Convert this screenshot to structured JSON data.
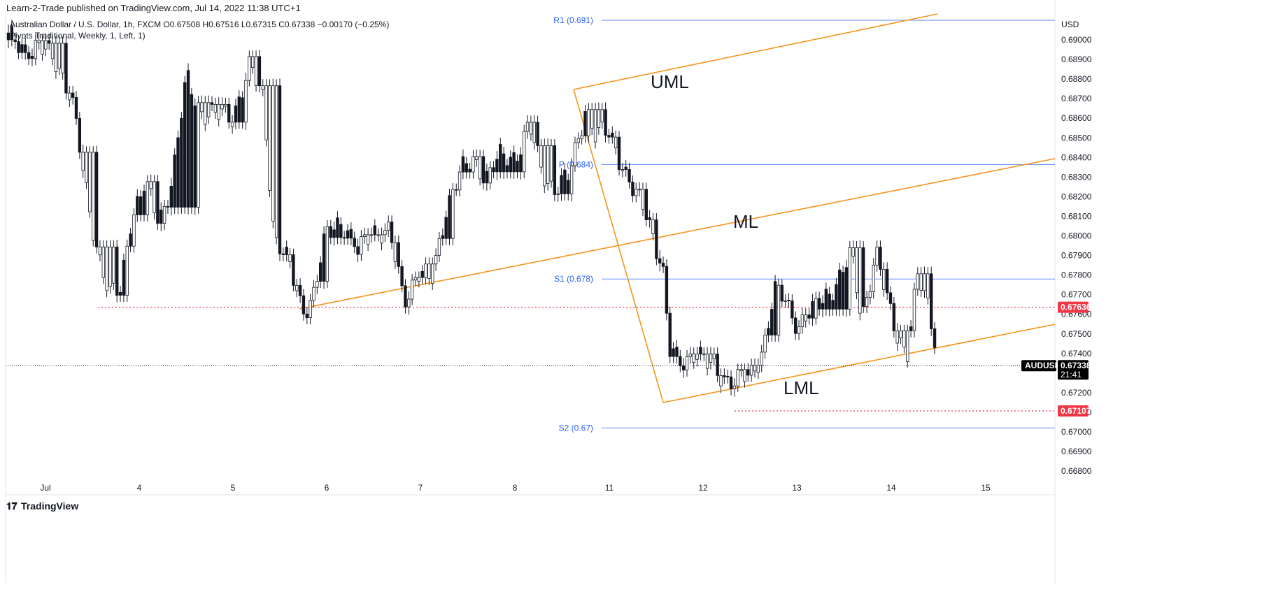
{
  "header": {
    "publisher": "Learn-2-Trade published on TradingView.com, Jul 14, 2022 11:38 UTC+1",
    "symbol_line": "Australian Dollar / U.S. Dollar, 1h, FXCM  O0.67508  H0.67516  L0.67315  C0.67338  −0.00170 (−0.25%)",
    "indicator_line": "Pivots Traditional, Weekly, 1, Left, 1)"
  },
  "currency": "USD",
  "footer_logo": "TradingView",
  "chart_data": {
    "type": "candlestick",
    "symbol": "AUDUSD",
    "interval": "1h",
    "ylim": [
      0.6675,
      0.6913
    ],
    "y_ticks": [
      "0.69000",
      "0.68900",
      "0.68800",
      "0.68700",
      "0.68600",
      "0.68500",
      "0.68400",
      "0.68300",
      "0.68200",
      "0.68100",
      "0.68000",
      "0.67900",
      "0.67800",
      "0.67700",
      "0.67600",
      "0.67500",
      "0.67400",
      "0.67200",
      "0.67100",
      "0.67000",
      "0.66900",
      "0.66800"
    ],
    "x_ticks": [
      "Jul",
      "4",
      "5",
      "6",
      "7",
      "8",
      "11",
      "12",
      "13",
      "14",
      "15"
    ],
    "pivots": [
      {
        "label": "R1 (0.691)",
        "value": 0.691
      },
      {
        "label": "P (0.684)",
        "value": 0.68364
      },
      {
        "label": "S1 (0.678)",
        "value": 0.6778
      },
      {
        "label": "S2 (0.67)",
        "value": 0.6702
      }
    ],
    "price_tags": [
      {
        "symbol": "AUDUSD",
        "value": "0.67338",
        "countdown": "21:41",
        "price": 0.67338,
        "color": "#000000"
      },
      {
        "value": "0.67636",
        "price": 0.67636,
        "color": "#f23645"
      },
      {
        "value": "0.67107",
        "price": 0.67107,
        "color": "#f23645"
      }
    ],
    "pitchfork": {
      "upper": "UML",
      "median": "ML",
      "lower": "LML",
      "color": "#f7931a"
    },
    "candle_series": [
      {
        "dir": "d",
        "amp": 0.0015
      },
      {
        "dir": "d",
        "amp": 0.0012
      },
      {
        "dir": "d",
        "amp": 0.0013
      },
      {
        "dir": "d",
        "amp": 0.0012
      },
      {
        "dir": "d",
        "amp": 0.0012
      },
      {
        "dir": "d",
        "amp": 0.0013
      },
      {
        "dir": "d",
        "amp": 0.0012
      },
      {
        "dir": "d",
        "amp": 0.0014
      },
      {
        "dir": "u",
        "amp": 0.0012
      },
      {
        "dir": "u",
        "amp": 0.0013
      },
      {
        "dir": "u",
        "amp": 0.0012
      },
      {
        "dir": "u",
        "amp": 0.0013
      },
      {
        "dir": "d",
        "amp": 0.0012
      },
      {
        "dir": "u",
        "amp": 0.0012
      },
      {
        "dir": "u",
        "amp": 0.0013
      },
      {
        "dir": "u",
        "amp": 0.0013
      },
      {
        "dir": "u",
        "amp": 0.0012
      },
      {
        "dir": "d",
        "amp": 0.0012
      },
      {
        "dir": "u",
        "amp": 0.0013
      },
      {
        "dir": "d",
        "amp": 0.0013
      },
      {
        "dir": "d",
        "amp": 0.0012
      },
      {
        "dir": "d",
        "amp": 0.0012
      },
      {
        "dir": "u",
        "amp": 0.0014
      },
      {
        "dir": "u",
        "amp": 0.0011
      },
      {
        "dir": "u",
        "amp": 0.0011
      },
      {
        "dir": "u",
        "amp": 0.0011
      },
      {
        "dir": "d",
        "amp": 0.0012
      },
      {
        "dir": "u",
        "amp": 0.0012
      },
      {
        "dir": "u",
        "amp": 0.0012
      },
      {
        "dir": "u",
        "amp": 0.0012
      },
      {
        "dir": "u",
        "amp": 0.0013
      },
      {
        "dir": "u",
        "amp": 0.0012
      },
      {
        "dir": "d",
        "amp": 0.0013
      },
      {
        "dir": "d",
        "amp": 0.0012
      },
      {
        "dir": "d",
        "amp": 0.0012
      },
      {
        "dir": "u",
        "amp": 0.0012
      },
      {
        "dir": "d",
        "amp": 0.0011
      },
      {
        "dir": "u",
        "amp": 0.0012
      },
      {
        "dir": "d",
        "amp": 0.0013
      },
      {
        "dir": "d",
        "amp": 0.0012
      },
      {
        "dir": "d",
        "amp": 0.0012
      },
      {
        "dir": "u",
        "amp": 0.0012
      },
      {
        "dir": "u",
        "amp": 0.0013
      },
      {
        "dir": "u",
        "amp": 0.0012
      },
      {
        "dir": "d",
        "amp": 0.0012
      },
      {
        "dir": "d",
        "amp": 0.0014
      },
      {
        "dir": "u",
        "amp": 0.0012
      },
      {
        "dir": "d",
        "amp": 0.0012
      }
    ],
    "price_path": [
      {
        "t": 0,
        "p": 0.69
      },
      {
        "t": 20,
        "p": 0.6898
      },
      {
        "t": 40,
        "p": 0.6895
      },
      {
        "t": 70,
        "p": 0.689
      },
      {
        "t": 90,
        "p": 0.687
      },
      {
        "t": 110,
        "p": 0.6825
      },
      {
        "t": 130,
        "p": 0.679
      },
      {
        "t": 145,
        "p": 0.6768
      },
      {
        "t": 160,
        "p": 0.6772
      },
      {
        "t": 175,
        "p": 0.681
      },
      {
        "t": 195,
        "p": 0.6825
      },
      {
        "t": 215,
        "p": 0.6808
      },
      {
        "t": 235,
        "p": 0.683
      },
      {
        "t": 255,
        "p": 0.688
      },
      {
        "t": 275,
        "p": 0.6865
      },
      {
        "t": 295,
        "p": 0.686
      },
      {
        "t": 320,
        "p": 0.6862
      },
      {
        "t": 345,
        "p": 0.6885
      },
      {
        "t": 365,
        "p": 0.687
      },
      {
        "t": 380,
        "p": 0.68
      },
      {
        "t": 400,
        "p": 0.6785
      },
      {
        "t": 420,
        "p": 0.6764
      },
      {
        "t": 435,
        "p": 0.6768
      },
      {
        "t": 455,
        "p": 0.68
      },
      {
        "t": 475,
        "p": 0.681
      },
      {
        "t": 500,
        "p": 0.679
      },
      {
        "t": 520,
        "p": 0.6805
      },
      {
        "t": 545,
        "p": 0.68
      },
      {
        "t": 565,
        "p": 0.6768
      },
      {
        "t": 585,
        "p": 0.6782
      },
      {
        "t": 605,
        "p": 0.6775
      },
      {
        "t": 625,
        "p": 0.6815
      },
      {
        "t": 645,
        "p": 0.683
      },
      {
        "t": 665,
        "p": 0.684
      },
      {
        "t": 685,
        "p": 0.683
      },
      {
        "t": 705,
        "p": 0.684
      },
      {
        "t": 725,
        "p": 0.6842
      },
      {
        "t": 745,
        "p": 0.6855
      },
      {
        "t": 760,
        "p": 0.6835
      },
      {
        "t": 780,
        "p": 0.6825
      },
      {
        "t": 800,
        "p": 0.6828
      },
      {
        "t": 815,
        "p": 0.685
      },
      {
        "t": 825,
        "p": 0.6868
      },
      {
        "t": 840,
        "p": 0.685
      },
      {
        "t": 860,
        "p": 0.6852
      },
      {
        "t": 875,
        "p": 0.684
      },
      {
        "t": 895,
        "p": 0.682
      },
      {
        "t": 915,
        "p": 0.681
      },
      {
        "t": 935,
        "p": 0.6785
      },
      {
        "t": 945,
        "p": 0.674
      },
      {
        "t": 960,
        "p": 0.6735
      },
      {
        "t": 980,
        "p": 0.6742
      },
      {
        "t": 1000,
        "p": 0.6733
      },
      {
        "t": 1020,
        "p": 0.673
      },
      {
        "t": 1040,
        "p": 0.6725
      },
      {
        "t": 1060,
        "p": 0.6728
      },
      {
        "t": 1080,
        "p": 0.6745
      },
      {
        "t": 1095,
        "p": 0.677
      },
      {
        "t": 1110,
        "p": 0.6768
      },
      {
        "t": 1130,
        "p": 0.6755
      },
      {
        "t": 1150,
        "p": 0.676
      },
      {
        "t": 1170,
        "p": 0.6772
      },
      {
        "t": 1190,
        "p": 0.6778
      },
      {
        "t": 1205,
        "p": 0.679
      },
      {
        "t": 1220,
        "p": 0.676
      },
      {
        "t": 1240,
        "p": 0.679
      },
      {
        "t": 1255,
        "p": 0.6768
      },
      {
        "t": 1270,
        "p": 0.6752
      },
      {
        "t": 1285,
        "p": 0.674
      },
      {
        "t": 1300,
        "p": 0.6778
      },
      {
        "t": 1315,
        "p": 0.6765
      },
      {
        "t": 1330,
        "p": 0.674
      },
      {
        "t": 1338,
        "p": 0.6734
      }
    ]
  }
}
